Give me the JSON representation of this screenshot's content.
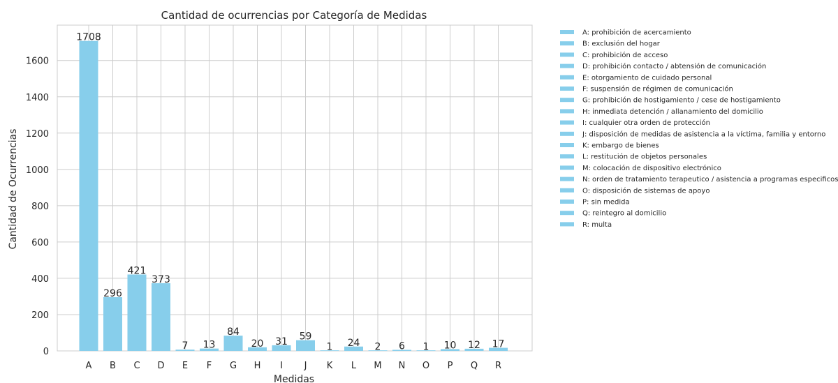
{
  "chart_data": {
    "type": "bar",
    "title": "Cantidad de ocurrencias por Categoría de Medidas",
    "xlabel": "Medidas",
    "ylabel": "Cantidad de Ocurrencias",
    "categories": [
      "A",
      "B",
      "C",
      "D",
      "E",
      "F",
      "G",
      "H",
      "I",
      "J",
      "K",
      "L",
      "M",
      "N",
      "O",
      "P",
      "Q",
      "R"
    ],
    "values": [
      1708,
      296,
      421,
      373,
      7,
      13,
      84,
      20,
      31,
      59,
      1,
      24,
      2,
      6,
      1,
      10,
      12,
      17
    ],
    "ylim": [
      0,
      1795
    ],
    "yticks": [
      0,
      200,
      400,
      600,
      800,
      1000,
      1200,
      1400,
      1600
    ],
    "grid": true,
    "bar_color": "#87CEEB",
    "legend_position": "outside right, top",
    "legend": [
      "A: prohibición de acercamiento",
      "B: exclusión del hogar",
      "C: prohibición de acceso",
      "D: prohibición contacto / abtensión de comunicación",
      "E: otorgamiento de cuidado personal",
      "F: suspensión de régimen de comunicación",
      "G: prohibición de hostigamiento / cese de hostigamiento",
      "H: inmediata detención / allanamiento del domicilio",
      "I: cualquier otra orden de protección",
      "J: disposición de medidas de asistencia a la víctima, familia y entorno",
      "K: embargo de bienes",
      "L: restitución de objetos personales",
      "M: colocación de dispositivo electrónico",
      "N: orden de tratamiento terapeutico / asistencia a programas especificos",
      "O: disposición de sistemas de apoyo",
      "P: sin medida",
      "Q: reintegro al domicilio",
      "R: multa"
    ]
  }
}
